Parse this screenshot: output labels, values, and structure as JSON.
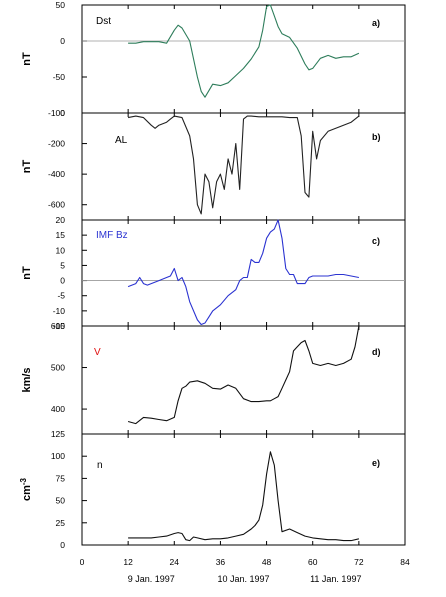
{
  "chart_data": [
    {
      "type": "line",
      "panel": "a)",
      "series_label": "Dst",
      "ylabel": "nT",
      "ylim": [
        -100,
        50
      ],
      "yticks": [
        -100,
        -50,
        0,
        50
      ],
      "reference_line": 0,
      "color": "#2e7d5b",
      "label_color": "#000000",
      "x": [
        12,
        14,
        16,
        18,
        20,
        22,
        24,
        25,
        26,
        28,
        30,
        31,
        32,
        34,
        36,
        38,
        40,
        42,
        44,
        46,
        47,
        48,
        49,
        50,
        51,
        52,
        54,
        56,
        58,
        59,
        60,
        62,
        64,
        66,
        68,
        70,
        72
      ],
      "y": [
        -3,
        -3,
        -1,
        -1,
        -1,
        -3,
        15,
        22,
        18,
        0,
        -50,
        -70,
        -78,
        -60,
        -62,
        -58,
        -48,
        -38,
        -25,
        -8,
        15,
        48,
        50,
        35,
        20,
        10,
        5,
        -10,
        -32,
        -40,
        -38,
        -24,
        -20,
        -24,
        -22,
        -22,
        -17
      ]
    },
    {
      "type": "line",
      "panel": "b)",
      "series_label": "AL",
      "ylabel": "nT",
      "ylim": [
        -700,
        0
      ],
      "yticks": [
        -600,
        -400,
        -200,
        0
      ],
      "color": "#222222",
      "label_color": "#000000",
      "x": [
        12,
        14,
        16,
        18,
        19,
        20,
        22,
        23,
        24,
        26,
        28,
        29,
        30,
        31,
        32,
        33,
        34,
        35,
        36,
        37,
        38,
        39,
        40,
        41,
        42,
        43,
        44,
        46,
        48,
        50,
        52,
        54,
        56,
        57,
        58,
        59,
        60,
        61,
        62,
        64,
        66,
        68,
        70,
        72
      ],
      "y": [
        -30,
        -20,
        -30,
        -80,
        -100,
        -80,
        -60,
        -40,
        -20,
        -30,
        -150,
        -300,
        -600,
        -660,
        -400,
        -450,
        -620,
        -450,
        -400,
        -500,
        -300,
        -400,
        -200,
        -500,
        -40,
        -20,
        -20,
        -25,
        -25,
        -25,
        -25,
        -30,
        -30,
        -150,
        -520,
        -550,
        -120,
        -300,
        -180,
        -120,
        -100,
        -80,
        -60,
        -20
      ]
    },
    {
      "type": "line",
      "panel": "c)",
      "series_label": "IMF Bz",
      "ylabel": "nT",
      "ylim": [
        -15,
        20
      ],
      "yticks": [
        -15,
        -10,
        -5,
        0,
        5,
        10,
        15,
        20
      ],
      "reference_line": 0,
      "color": "#2b33d1",
      "label_color": "#2b33d1",
      "x": [
        12,
        14,
        15,
        16,
        17,
        18,
        20,
        22,
        23,
        24,
        25,
        26,
        27,
        28,
        30,
        31,
        32,
        33,
        34,
        36,
        38,
        40,
        41,
        42,
        43,
        44,
        45,
        46,
        47,
        48,
        49,
        50,
        51,
        52,
        53,
        54,
        55,
        56,
        57,
        58,
        59,
        60,
        62,
        64,
        66,
        68,
        70,
        72
      ],
      "y": [
        -2,
        -1,
        1,
        -1,
        -1.5,
        -1,
        0,
        1,
        1.5,
        4,
        0,
        1,
        -2,
        -7,
        -13,
        -14.5,
        -14,
        -12,
        -10,
        -8,
        -5,
        -3,
        0,
        1,
        1,
        7,
        6,
        6,
        9,
        14,
        16,
        17,
        20,
        14,
        4,
        2,
        2,
        -1,
        -1,
        -1,
        1,
        1.5,
        1.5,
        1.5,
        2,
        2,
        1.5,
        1
      ]
    },
    {
      "type": "line",
      "panel": "d)",
      "series_label": "V",
      "ylabel": "km/s",
      "ylim": [
        340,
        600
      ],
      "yticks": [
        400,
        500,
        600
      ],
      "color": "#111111",
      "label_color": "#e01010",
      "x": [
        12,
        14,
        16,
        18,
        20,
        22,
        24,
        25,
        26,
        27,
        28,
        30,
        32,
        34,
        36,
        38,
        40,
        42,
        44,
        46,
        48,
        49,
        50,
        51,
        52,
        53,
        54,
        55,
        56,
        57,
        58,
        59,
        60,
        62,
        64,
        66,
        68,
        70,
        71,
        72
      ],
      "y": [
        370,
        365,
        380,
        378,
        375,
        372,
        380,
        420,
        450,
        455,
        465,
        468,
        462,
        450,
        448,
        458,
        450,
        425,
        418,
        418,
        420,
        420,
        425,
        430,
        450,
        470,
        490,
        540,
        550,
        560,
        565,
        540,
        510,
        505,
        510,
        505,
        510,
        520,
        550,
        600
      ]
    },
    {
      "type": "line",
      "panel": "e)",
      "series_label": "n",
      "ylabel": "cm-3",
      "ylim": [
        0,
        125
      ],
      "yticks": [
        0,
        25,
        50,
        75,
        100,
        125
      ],
      "color": "#111111",
      "label_color": "#000000",
      "x": [
        12,
        14,
        16,
        18,
        20,
        22,
        24,
        25,
        26,
        27,
        28,
        29,
        30,
        32,
        34,
        36,
        38,
        40,
        42,
        44,
        45,
        46,
        47,
        48,
        49,
        50,
        51,
        52,
        54,
        56,
        58,
        60,
        62,
        64,
        66,
        68,
        70,
        72
      ],
      "y": [
        8,
        8,
        8,
        8,
        9,
        10,
        13,
        14,
        13,
        6,
        5,
        9,
        8,
        6,
        7,
        7,
        8,
        10,
        12,
        18,
        22,
        28,
        45,
        80,
        105,
        90,
        50,
        15,
        18,
        14,
        10,
        8,
        7,
        6,
        6,
        5,
        5,
        7
      ]
    }
  ],
  "x_axis": {
    "xlim": [
      0,
      84
    ],
    "tick_values": [
      0,
      12,
      24,
      36,
      48,
      60,
      72,
      84
    ],
    "tick_labels": [
      "0",
      "12",
      "24",
      "36",
      "48",
      "60",
      "72",
      "84"
    ],
    "date_labels": [
      "9 Jan. 1997",
      "10 Jan. 1997",
      "11 Jan. 1997"
    ]
  }
}
